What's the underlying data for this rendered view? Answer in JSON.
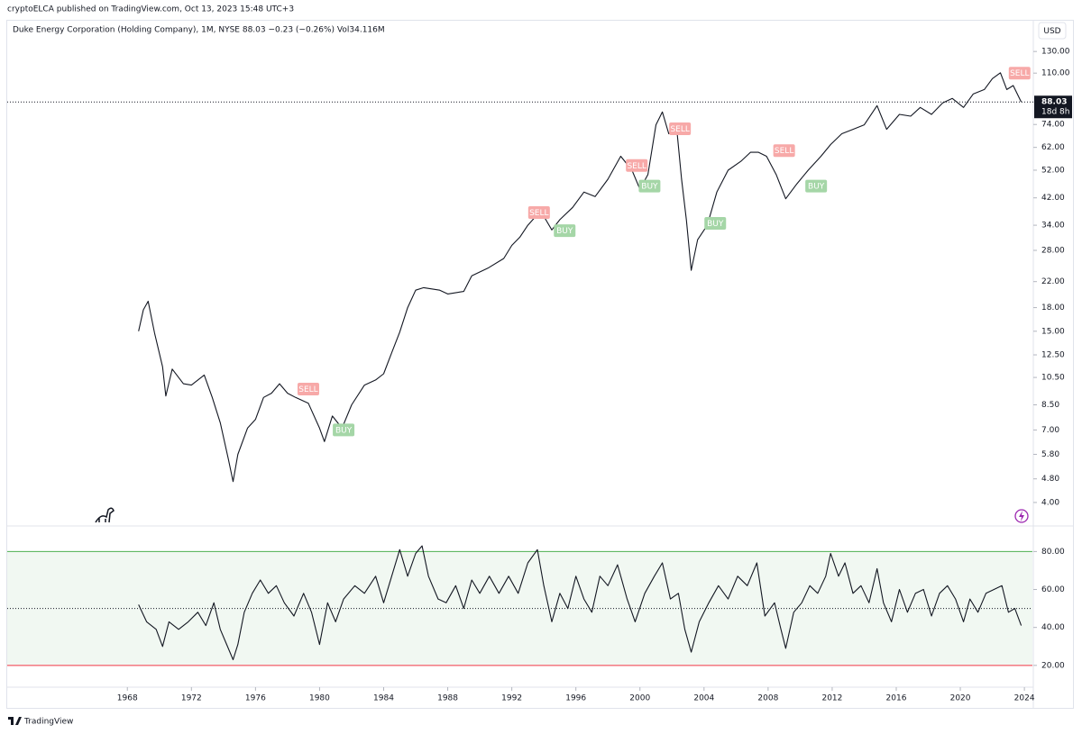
{
  "header": {
    "publisher": "cryptoELCA published on TradingView.com, Oct 13, 2023 15:48 UTC+3",
    "legend": "Duke Energy Corporation (Holding Company), 1M, NYSE  88.03  −0.23 (−0.26%)  Vol34.116M",
    "currency": "USD"
  },
  "footer": "TradingView",
  "chart_data": [
    {
      "type": "line",
      "log_scale": true,
      "color": "#131722",
      "grid": false,
      "xlim": [
        1960.5,
        2024.5
      ],
      "ylim": [
        3.36,
        166
      ],
      "xticks": [
        1968,
        1972,
        1976,
        1980,
        1984,
        1988,
        1992,
        1996,
        2000,
        2004,
        2008,
        2012,
        2016,
        2020,
        2024
      ],
      "yticks": [
        {
          "value": 130,
          "label": "130.00"
        },
        {
          "value": 110,
          "label": "110.00"
        },
        {
          "value": 74,
          "label": "74.00"
        },
        {
          "value": 62,
          "label": "62.00"
        },
        {
          "value": 52,
          "label": "52.00"
        },
        {
          "value": 42,
          "label": "42.00"
        },
        {
          "value": 34,
          "label": "34.00"
        },
        {
          "value": 28,
          "label": "28.00"
        },
        {
          "value": 22,
          "label": "22.00"
        },
        {
          "value": 18,
          "label": "18.00"
        },
        {
          "value": 15,
          "label": "15.00"
        },
        {
          "value": 12.5,
          "label": "12.50"
        },
        {
          "value": 10.5,
          "label": "10.50"
        },
        {
          "value": 8.5,
          "label": "8.50"
        },
        {
          "value": 7,
          "label": "7.00"
        },
        {
          "value": 5.8,
          "label": "5.80"
        },
        {
          "value": 4.8,
          "label": "4.80"
        },
        {
          "value": 4,
          "label": "4.00"
        }
      ],
      "last_price": 88.03,
      "countdown": "18d 8h",
      "x": [
        1968.7,
        1969.0,
        1969.3,
        1969.7,
        1970.2,
        1970.4,
        1970.8,
        1971.5,
        1972.0,
        1972.8,
        1973.3,
        1973.8,
        1974.3,
        1974.6,
        1974.9,
        1975.5,
        1976.0,
        1976.5,
        1977.0,
        1977.5,
        1978.0,
        1978.5,
        1979.3,
        1980.0,
        1980.3,
        1980.8,
        1981.4,
        1982.0,
        1982.8,
        1983.5,
        1984.0,
        1984.5,
        1985.0,
        1985.5,
        1986.0,
        1986.5,
        1987.5,
        1988.0,
        1989.0,
        1989.5,
        1990.5,
        1991.5,
        1992.0,
        1992.5,
        1993.0,
        1993.8,
        1994.5,
        1995.0,
        1995.8,
        1996.5,
        1997.2,
        1998.0,
        1998.8,
        1999.5,
        2000.0,
        2000.5,
        2001.0,
        2001.4,
        2001.8,
        2002.3,
        2002.6,
        2002.9,
        2003.2,
        2003.6,
        2004.2,
        2004.8,
        2005.5,
        2006.3,
        2006.9,
        2007.4,
        2007.9,
        2008.5,
        2009.1,
        2009.8,
        2010.5,
        2011.3,
        2011.9,
        2012.6,
        2013.3,
        2014.0,
        2014.8,
        2015.4,
        2016.2,
        2016.9,
        2017.5,
        2018.2,
        2018.9,
        2019.5,
        2020.2,
        2020.8,
        2021.5,
        2022.0,
        2022.5,
        2022.9,
        2023.3,
        2023.8
      ],
      "values": [
        15.0,
        17.7,
        18.9,
        14.8,
        11.4,
        9.1,
        11.2,
        10.0,
        9.9,
        10.7,
        9.0,
        7.4,
        5.6,
        4.7,
        5.8,
        7.1,
        7.6,
        9.0,
        9.3,
        10.0,
        9.3,
        9.0,
        8.6,
        7.1,
        6.4,
        7.8,
        7.1,
        8.5,
        9.9,
        10.3,
        10.8,
        12.7,
        14.9,
        18.0,
        20.6,
        21.0,
        20.6,
        20.0,
        20.4,
        23.0,
        24.4,
        26.3,
        29.1,
        31.0,
        34.0,
        38.0,
        32.8,
        35.5,
        39.0,
        43.9,
        42.4,
        48.5,
        57.9,
        52.0,
        44.9,
        50.3,
        73.8,
        81.5,
        68.9,
        71.3,
        48.5,
        35.3,
        24.0,
        30.4,
        34.0,
        43.9,
        52.0,
        55.7,
        59.7,
        59.7,
        57.9,
        50.3,
        41.7,
        46.8,
        52.0,
        57.9,
        63.4,
        68.9,
        71.3,
        73.8,
        85.6,
        71.3,
        80.0,
        78.9,
        84.4,
        80.0,
        87.4,
        90.5,
        84.4,
        93.6,
        96.9,
        105.4,
        110.3,
        96.9,
        99.9,
        88.03
      ],
      "signals": [
        {
          "label": "SELL",
          "x": 1979.3,
          "y": 9.6,
          "color": "#f7a9a8"
        },
        {
          "label": "BUY",
          "x": 1981.5,
          "y": 7.0,
          "color": "#a5d6a7"
        },
        {
          "label": "SELL",
          "x": 1993.7,
          "y": 37.5,
          "color": "#f7a9a8"
        },
        {
          "label": "BUY",
          "x": 1995.3,
          "y": 32.6,
          "color": "#a5d6a7"
        },
        {
          "label": "SELL",
          "x": 1999.8,
          "y": 53.9,
          "color": "#f7a9a8"
        },
        {
          "label": "BUY",
          "x": 2000.6,
          "y": 46.0,
          "color": "#a5d6a7"
        },
        {
          "label": "SELL",
          "x": 2002.5,
          "y": 71.6,
          "color": "#f7a9a8"
        },
        {
          "label": "BUY",
          "x": 2004.7,
          "y": 34.5,
          "color": "#a5d6a7"
        },
        {
          "label": "SELL",
          "x": 2009.0,
          "y": 60.5,
          "color": "#f7a9a8"
        },
        {
          "label": "BUY",
          "x": 2011.0,
          "y": 46.0,
          "color": "#a5d6a7"
        },
        {
          "label": "SELL",
          "x": 2023.7,
          "y": 110,
          "color": "#f7a9a8"
        }
      ]
    },
    {
      "type": "line",
      "log_scale": false,
      "color": "#131722",
      "grid": false,
      "xlim": [
        1960.5,
        2024.5
      ],
      "ylim": [
        9,
        93
      ],
      "yticks": [
        {
          "value": 80,
          "label": "80.00"
        },
        {
          "value": 60,
          "label": "60.00"
        },
        {
          "value": 40,
          "label": "40.00"
        },
        {
          "value": 20,
          "label": "20.00"
        }
      ],
      "bands": [
        {
          "value": 80,
          "color": "#4caf50"
        },
        {
          "value": 20,
          "color": "#f23645"
        }
      ],
      "band_fill": "#f1f8f2",
      "midline": 50,
      "x": [
        1968.7,
        1969.2,
        1969.8,
        1970.2,
        1970.6,
        1971.2,
        1971.8,
        1972.4,
        1972.9,
        1973.4,
        1973.8,
        1974.2,
        1974.6,
        1974.9,
        1975.3,
        1975.8,
        1976.3,
        1976.8,
        1977.3,
        1977.8,
        1978.4,
        1979.0,
        1979.5,
        1980.0,
        1980.5,
        1981.0,
        1981.5,
        1982.2,
        1982.8,
        1983.5,
        1984.0,
        1984.5,
        1985.0,
        1985.5,
        1986.0,
        1986.4,
        1986.8,
        1987.4,
        1987.9,
        1988.5,
        1989.0,
        1989.5,
        1990.0,
        1990.6,
        1991.2,
        1991.8,
        1992.4,
        1993.0,
        1993.6,
        1994.0,
        1994.5,
        1995.0,
        1995.5,
        1996.0,
        1996.5,
        1997.0,
        1997.5,
        1998.0,
        1998.6,
        1999.2,
        1999.7,
        2000.3,
        2000.9,
        2001.4,
        2001.9,
        2002.4,
        2002.8,
        2003.2,
        2003.7,
        2004.3,
        2004.9,
        2005.5,
        2006.1,
        2006.7,
        2007.3,
        2007.8,
        2008.4,
        2008.8,
        2009.1,
        2009.6,
        2010.1,
        2010.6,
        2011.1,
        2011.6,
        2011.9,
        2012.4,
        2012.8,
        2013.3,
        2013.8,
        2014.3,
        2014.8,
        2015.2,
        2015.7,
        2016.2,
        2016.7,
        2017.2,
        2017.7,
        2018.2,
        2018.7,
        2019.2,
        2019.7,
        2020.2,
        2020.6,
        2021.1,
        2021.6,
        2022.1,
        2022.6,
        2023.0,
        2023.4,
        2023.8
      ],
      "values": [
        52,
        43,
        39,
        30,
        43,
        39,
        43,
        48,
        41,
        53,
        39,
        31,
        23,
        31,
        48,
        58,
        65,
        58,
        62,
        53,
        46,
        58,
        48,
        31,
        53,
        43,
        55,
        62,
        58,
        67,
        53,
        67,
        81,
        67,
        79,
        83,
        67,
        55,
        53,
        62,
        50,
        65,
        58,
        67,
        58,
        67,
        58,
        74,
        81,
        62,
        43,
        58,
        50,
        67,
        55,
        48,
        67,
        62,
        73,
        55,
        43,
        58,
        67,
        74,
        55,
        58,
        39,
        27,
        43,
        53,
        62,
        55,
        67,
        62,
        74,
        46,
        53,
        39,
        29,
        48,
        53,
        62,
        58,
        67,
        79,
        67,
        74,
        58,
        62,
        53,
        71,
        53,
        43,
        60,
        48,
        58,
        60,
        46,
        58,
        62,
        55,
        43,
        55,
        48,
        58,
        60,
        62,
        48,
        50,
        41
      ]
    }
  ]
}
